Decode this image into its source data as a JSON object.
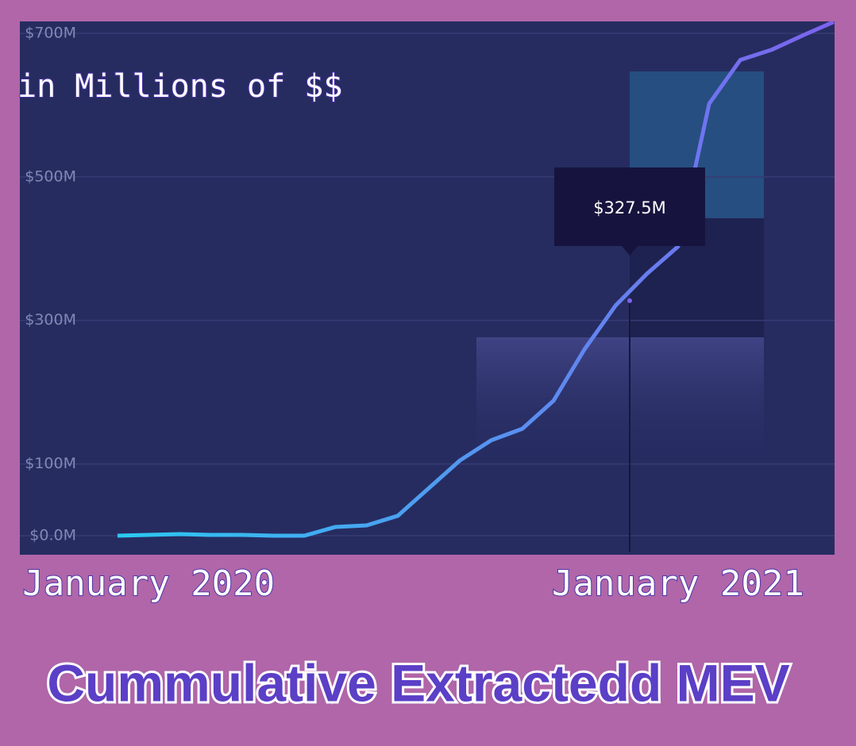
{
  "chart_data": {
    "type": "line",
    "title": "Cummulative Extractedd MEV",
    "subtitle": "in Millions of $$",
    "categories": [
      null,
      "January 2020",
      null,
      null,
      null,
      null,
      null,
      null,
      null,
      null,
      null,
      null,
      null,
      null,
      null,
      null,
      null,
      null,
      "January 2021",
      null,
      null,
      null,
      null,
      null
    ],
    "values": [
      0,
      1.1,
      2.2,
      1.1,
      1.1,
      0,
      0,
      12.2,
      14.4,
      27.7,
      66.4,
      105,
      133,
      149,
      188,
      260,
      321,
      365,
      403,
      602,
      663,
      677,
      697,
      716
    ],
    "gradient": [
      "#2bc9f2",
      "#7d62ee"
    ],
    "ylim": [
      0,
      700
    ],
    "yticks": [
      {
        "value": 0,
        "label": "$0.0M"
      },
      {
        "value": 100,
        "label": "$100M"
      },
      {
        "value": 300,
        "label": "$300M"
      },
      {
        "value": 500,
        "label": "$500M"
      },
      {
        "value": 700,
        "label": "$700M"
      }
    ],
    "grid": true,
    "annotation": {
      "value": 327.5,
      "label": "$327.5M"
    }
  }
}
